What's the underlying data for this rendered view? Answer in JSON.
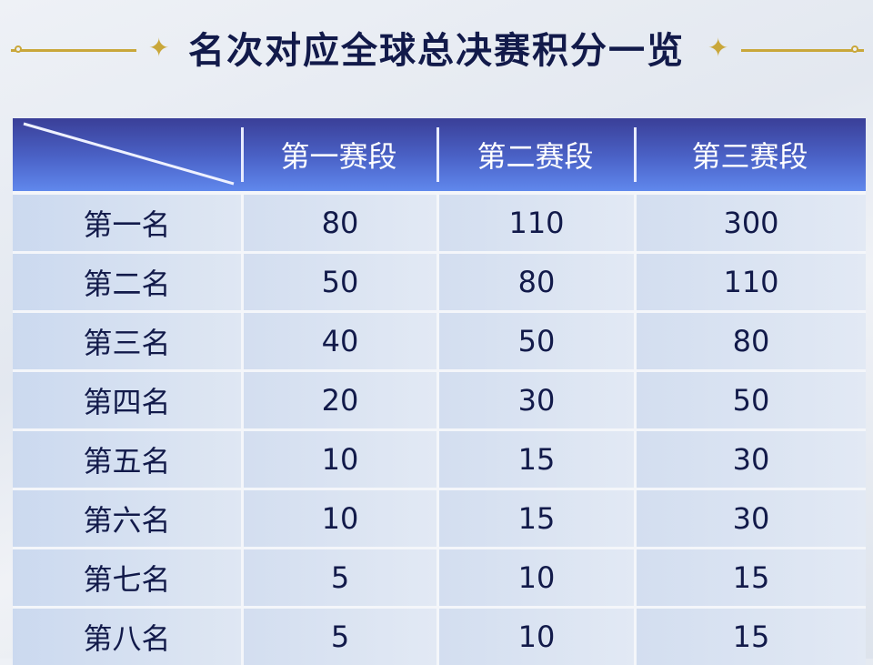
{
  "title": "名次对应全球总决赛积分一览",
  "accent_color": "#c9a73a",
  "header_color": "#4b63c8",
  "table": {
    "columns": [
      "第一赛段",
      "第二赛段",
      "第三赛段"
    ],
    "rows": [
      {
        "rank": "第一名",
        "values": [
          "80",
          "110",
          "300"
        ]
      },
      {
        "rank": "第二名",
        "values": [
          "50",
          "80",
          "110"
        ]
      },
      {
        "rank": "第三名",
        "values": [
          "40",
          "50",
          "80"
        ]
      },
      {
        "rank": "第四名",
        "values": [
          "20",
          "30",
          "50"
        ]
      },
      {
        "rank": "第五名",
        "values": [
          "10",
          "15",
          "30"
        ]
      },
      {
        "rank": "第六名",
        "values": [
          "10",
          "15",
          "30"
        ]
      },
      {
        "rank": "第七名",
        "values": [
          "5",
          "10",
          "15"
        ]
      },
      {
        "rank": "第八名",
        "values": [
          "5",
          "10",
          "15"
        ]
      }
    ]
  }
}
